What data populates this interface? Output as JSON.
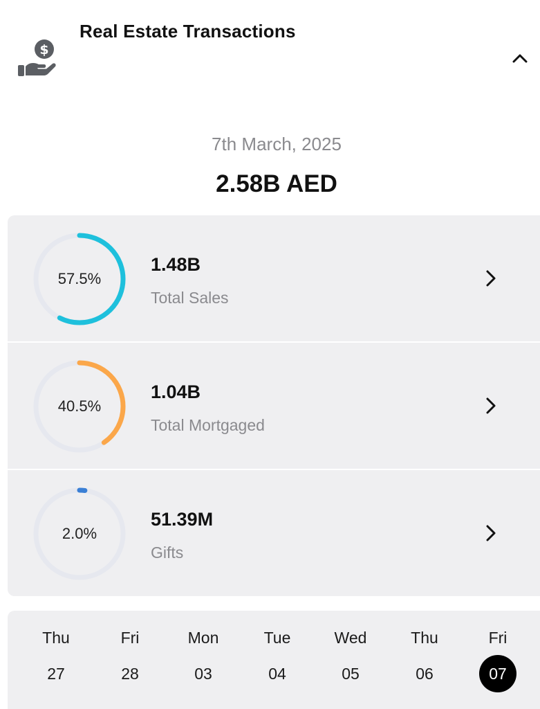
{
  "header": {
    "title": "Real Estate Transactions",
    "icon": "hand-holding-dollar-icon",
    "collapse_icon": "chevron-up-icon"
  },
  "summary": {
    "date": "7th March, 2025",
    "total": "2.58B AED"
  },
  "breakdown": [
    {
      "id": "total-sales",
      "percent_label": "57.5%",
      "percent": 57.5,
      "value": "1.48B",
      "label": "Total Sales",
      "color": "#1ec0dc"
    },
    {
      "id": "total-mortgaged",
      "percent_label": "40.5%",
      "percent": 40.5,
      "value": "1.04B",
      "label": "Total Mortgaged",
      "color": "#fba74a"
    },
    {
      "id": "gifts",
      "percent_label": "2.0%",
      "percent": 2.0,
      "value": "51.39M",
      "label": "Gifts",
      "color": "#3a7fd5"
    }
  ],
  "ring_track_color": "#e6e8ef",
  "days": [
    {
      "name": "Thu",
      "num": "27",
      "selected": false
    },
    {
      "name": "Fri",
      "num": "28",
      "selected": false
    },
    {
      "name": "Mon",
      "num": "03",
      "selected": false
    },
    {
      "name": "Tue",
      "num": "04",
      "selected": false
    },
    {
      "name": "Wed",
      "num": "05",
      "selected": false
    },
    {
      "name": "Thu",
      "num": "06",
      "selected": false
    },
    {
      "name": "Fri",
      "num": "07",
      "selected": true
    }
  ]
}
